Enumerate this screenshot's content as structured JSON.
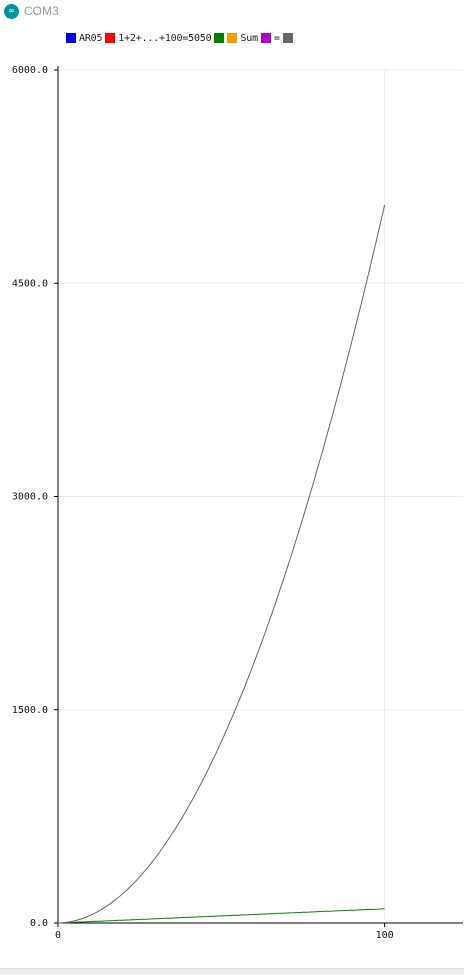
{
  "window": {
    "title": "COM3",
    "icon": "arduino-infinity-icon",
    "icon_glyph": "∞"
  },
  "legend": [
    {
      "label": "AR05",
      "color": "#0000ff"
    },
    {
      "label": "1+2+...+100=5050",
      "color": "#ff0000"
    },
    {
      "label": "Sum",
      "color": "#008000",
      "pre_color": "#ff9900"
    },
    {
      "label": "=",
      "color": "#666666",
      "pre_color": "#b400c8"
    }
  ],
  "chart_data": {
    "type": "line",
    "x": {
      "min": 0,
      "max": 124,
      "ticks": [
        0,
        100
      ],
      "tick_labels": [
        "0",
        "100"
      ]
    },
    "y": {
      "min": 0,
      "max": 6000,
      "ticks": [
        0,
        1500,
        3000,
        4500,
        6000
      ],
      "tick_labels": [
        "0.0",
        "1500.0",
        "3000.0",
        "4500.0",
        "6000.0"
      ]
    },
    "grid": true,
    "legend_position": "top-left",
    "series": [
      {
        "color": "#008000",
        "formula": "n",
        "n_max": 100
      },
      {
        "color": "#666666",
        "formula": "n*(n+1)/2",
        "n_max": 100,
        "last_value": 5050
      }
    ]
  }
}
